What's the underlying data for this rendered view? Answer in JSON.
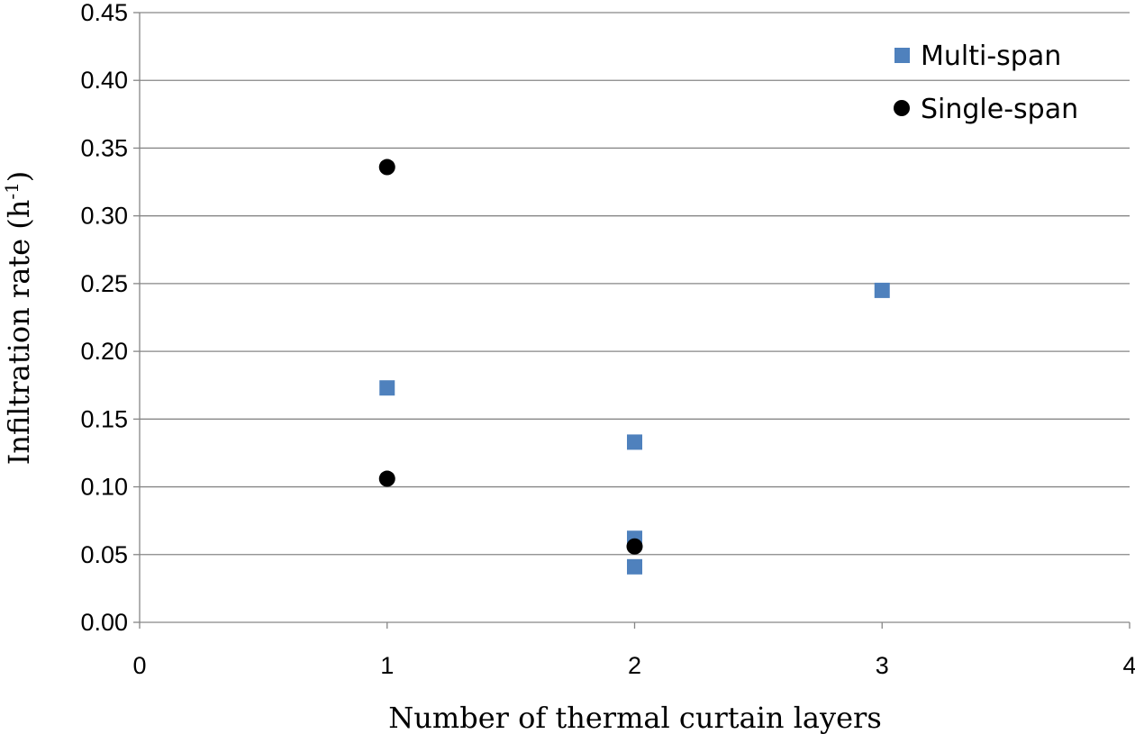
{
  "chart_data": {
    "type": "scatter",
    "title": "",
    "xlabel": "Number of thermal curtain layers",
    "ylabel": {
      "base": "Infiltration rate (h",
      "sup": "-1",
      "close": ")"
    },
    "xlim": [
      0,
      4
    ],
    "ylim": [
      0,
      0.45
    ],
    "x_ticks": [
      "0",
      "1",
      "2",
      "3",
      "4"
    ],
    "y_ticks": [
      "0.00",
      "0.05",
      "0.10",
      "0.15",
      "0.20",
      "0.25",
      "0.30",
      "0.35",
      "0.40",
      "0.45"
    ],
    "grid": "horizontal",
    "legend_position": "top-right",
    "series": [
      {
        "name": "Multi-span",
        "marker": "square",
        "color": "#4F81BD",
        "points": [
          {
            "x": 1,
            "y": 0.173
          },
          {
            "x": 2,
            "y": 0.133
          },
          {
            "x": 2,
            "y": 0.062
          },
          {
            "x": 2,
            "y": 0.041
          },
          {
            "x": 3,
            "y": 0.245
          }
        ]
      },
      {
        "name": "Single-span",
        "marker": "circle",
        "color": "#000000",
        "points": [
          {
            "x": 1,
            "y": 0.336
          },
          {
            "x": 1,
            "y": 0.106
          },
          {
            "x": 2,
            "y": 0.056
          }
        ]
      }
    ]
  }
}
